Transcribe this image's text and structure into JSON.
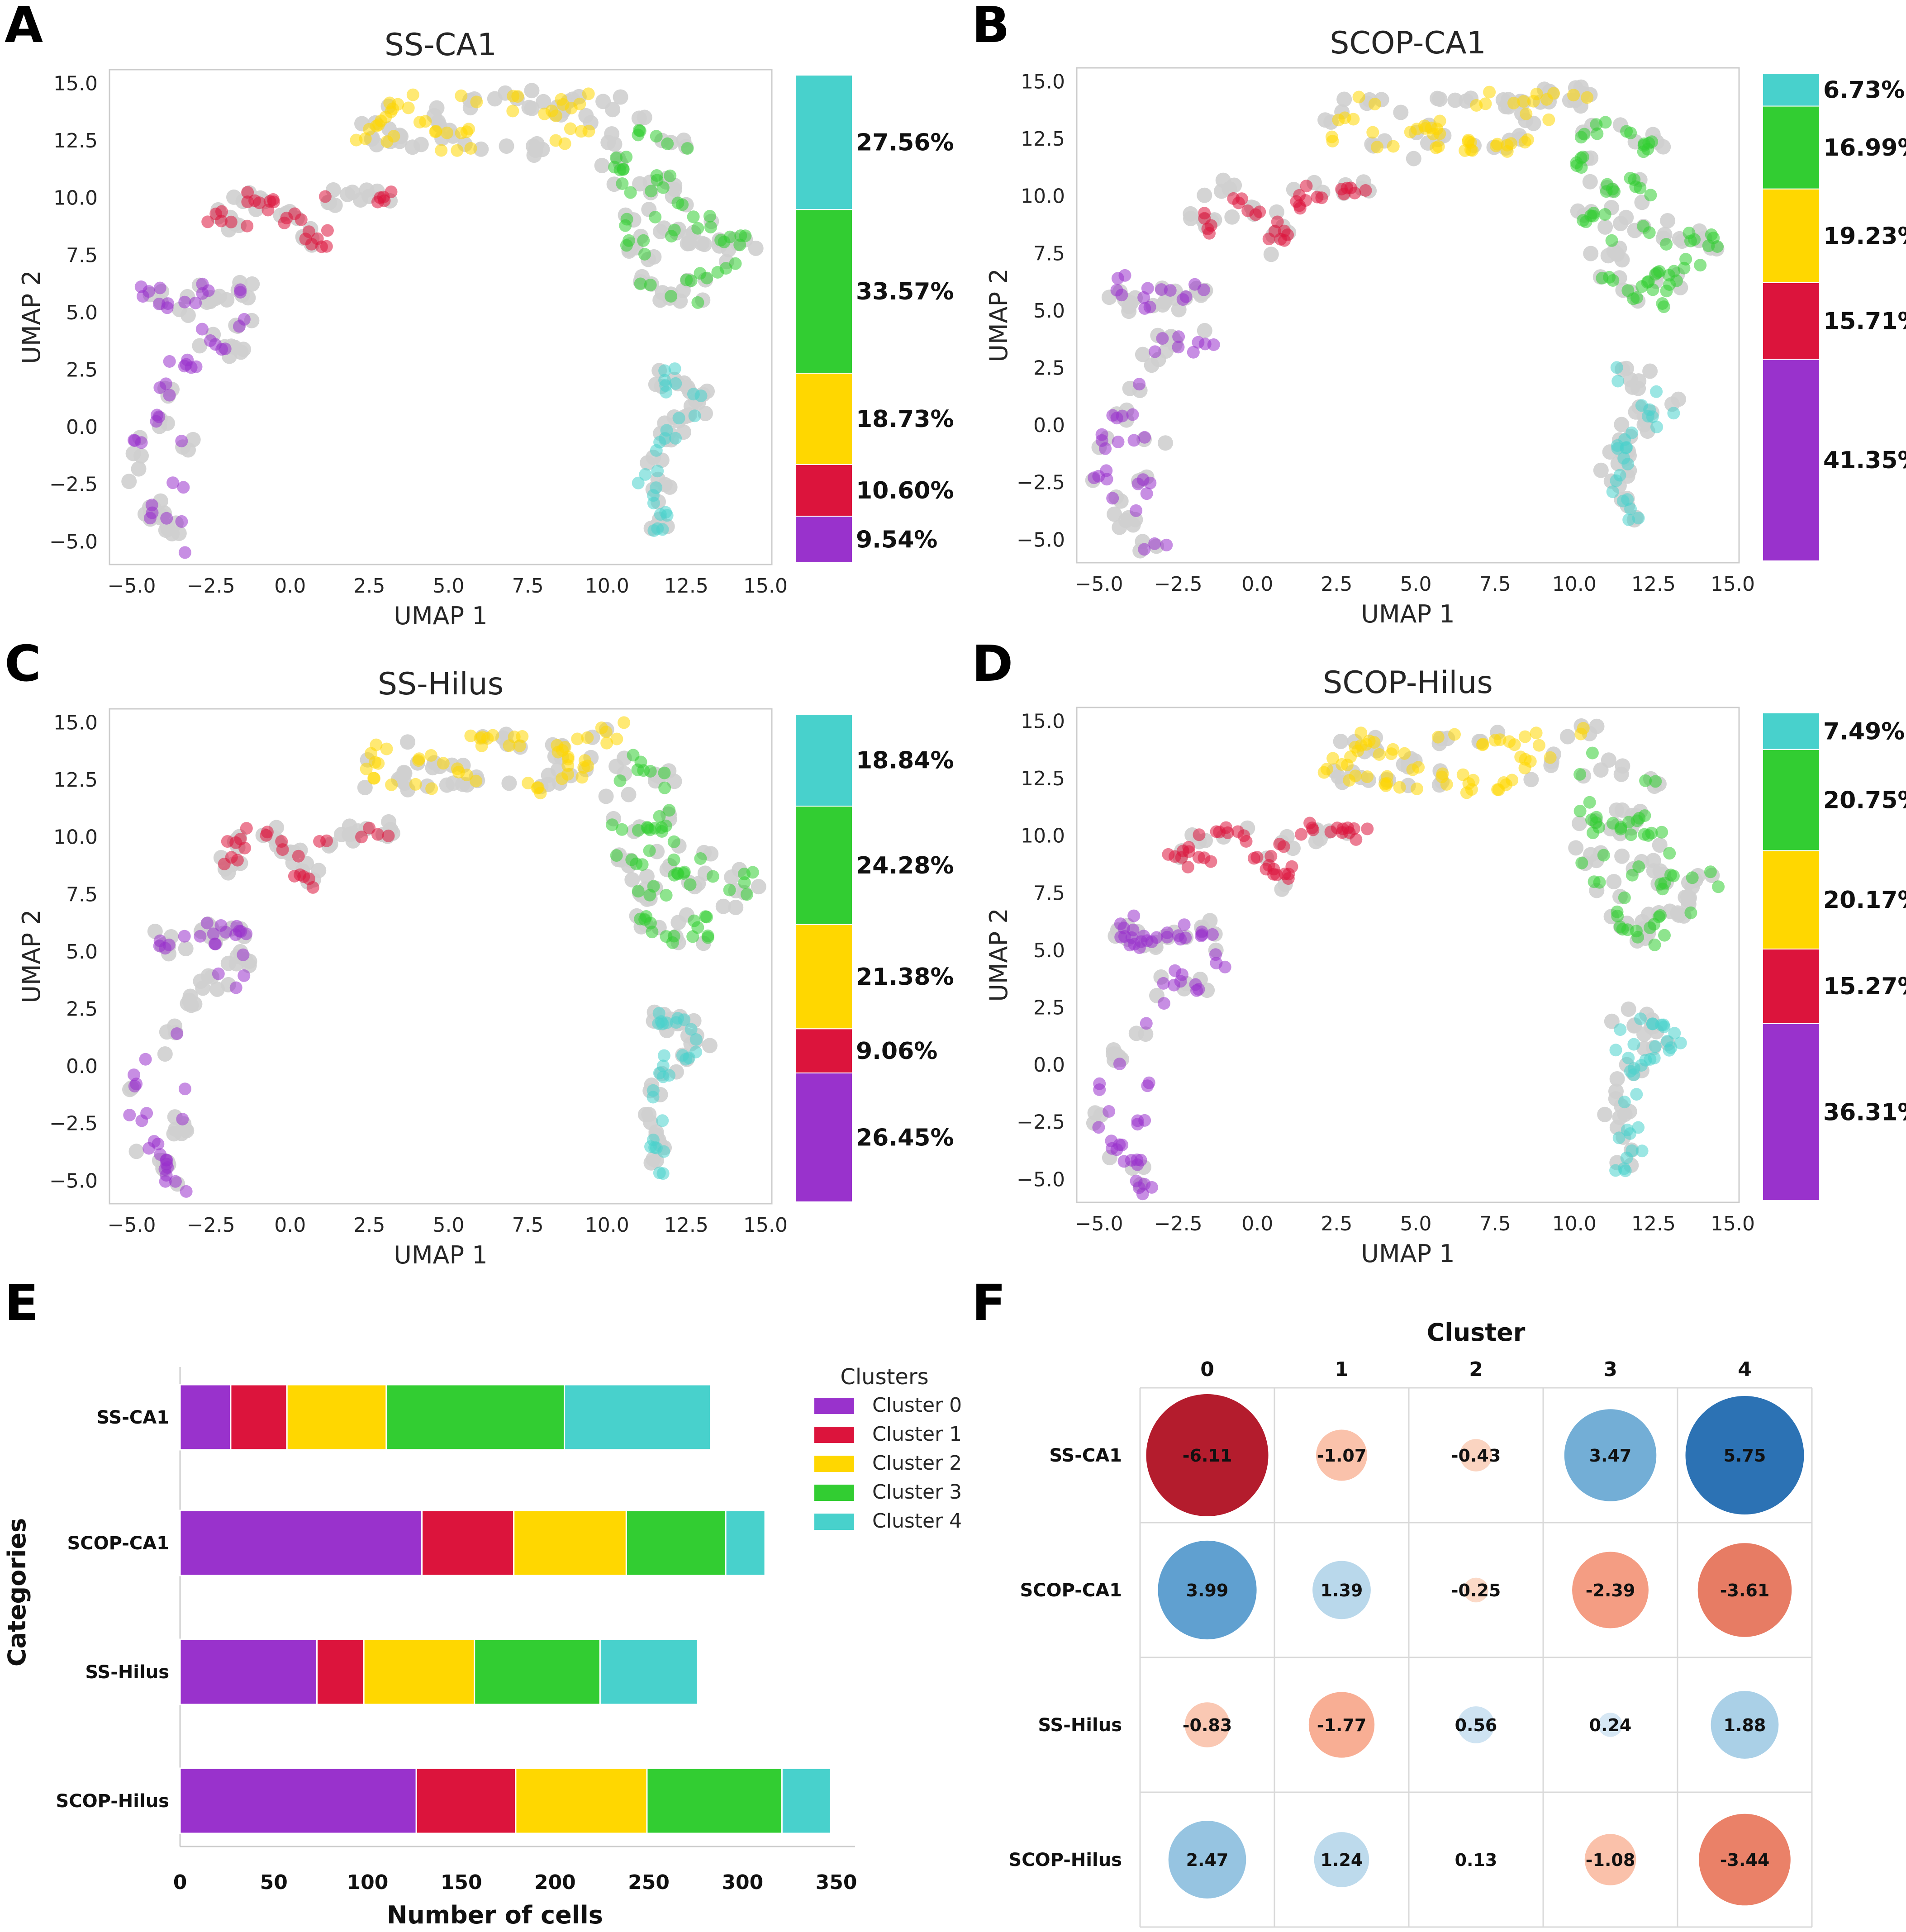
{
  "colors": {
    "cluster_0": "#9932CC",
    "cluster_1": "#DC143C",
    "cluster_2": "#FFD700",
    "cluster_3": "#32CD32",
    "cluster_4": "#48D1CC",
    "background_points": "#cfcfcf"
  },
  "panel_letters": [
    "A",
    "B",
    "C",
    "D",
    "E",
    "F"
  ],
  "chart_data": [
    {
      "panel": "A",
      "type": "scatter",
      "title": "SS-CA1",
      "xlabel": "UMAP 1",
      "ylabel": "UMAP 2",
      "xlim": [
        -5.7,
        15.2
      ],
      "ylim": [
        -6.0,
        15.6
      ],
      "xticks": [
        "−5.0",
        "−2.5",
        "0.0",
        "2.5",
        "5.0",
        "7.5",
        "10.0",
        "12.5",
        "15.0"
      ],
      "yticks": [
        "−5.0",
        "−2.5",
        "0.0",
        "2.5",
        "5.0",
        "7.5",
        "10.0",
        "12.5",
        "15.0"
      ],
      "highlighted_fraction": 0.45,
      "composition": {
        "labels": [
          "Cluster 0",
          "Cluster 1",
          "Cluster 2",
          "Cluster 3",
          "Cluster 4"
        ],
        "values": [
          9.54,
          10.6,
          18.73,
          33.57,
          27.56
        ],
        "value_labels": [
          "9.54%",
          "10.60%",
          "18.73%",
          "33.57%",
          "27.56%"
        ]
      }
    },
    {
      "panel": "B",
      "type": "scatter",
      "title": "SCOP-CA1",
      "xlabel": "UMAP 1",
      "ylabel": "UMAP 2",
      "xlim": [
        -5.7,
        15.2
      ],
      "ylim": [
        -6.0,
        15.6
      ],
      "xticks": [
        "−5.0",
        "−2.5",
        "0.0",
        "2.5",
        "5.0",
        "7.5",
        "10.0",
        "12.5",
        "15.0"
      ],
      "yticks": [
        "−5.0",
        "−2.5",
        "0.0",
        "2.5",
        "5.0",
        "7.5",
        "10.0",
        "12.5",
        "15.0"
      ],
      "highlighted_fraction": 0.52,
      "composition": {
        "labels": [
          "Cluster 0",
          "Cluster 1",
          "Cluster 2",
          "Cluster 3",
          "Cluster 4"
        ],
        "values": [
          41.35,
          15.71,
          19.23,
          16.99,
          6.73
        ],
        "value_labels": [
          "41.35%",
          "15.71%",
          "19.23%",
          "16.99%",
          "6.73%"
        ]
      }
    },
    {
      "panel": "C",
      "type": "scatter",
      "title": "SS-Hilus",
      "xlabel": "UMAP 1",
      "ylabel": "UMAP 2",
      "xlim": [
        -5.7,
        15.2
      ],
      "ylim": [
        -6.0,
        15.6
      ],
      "xticks": [
        "−5.0",
        "−2.5",
        "0.0",
        "2.5",
        "5.0",
        "7.5",
        "10.0",
        "12.5",
        "15.0"
      ],
      "yticks": [
        "−5.0",
        "−2.5",
        "0.0",
        "2.5",
        "5.0",
        "7.5",
        "10.0",
        "12.5",
        "15.0"
      ],
      "highlighted_fraction": 0.44,
      "composition": {
        "labels": [
          "Cluster 0",
          "Cluster 1",
          "Cluster 2",
          "Cluster 3",
          "Cluster 4"
        ],
        "values": [
          26.45,
          9.06,
          21.38,
          24.28,
          18.84
        ],
        "value_labels": [
          "26.45%",
          "9.06%",
          "21.38%",
          "24.28%",
          "18.84%"
        ]
      }
    },
    {
      "panel": "D",
      "type": "scatter",
      "title": "SCOP-Hilus",
      "xlabel": "UMAP 1",
      "ylabel": "UMAP 2",
      "xlim": [
        -5.7,
        15.2
      ],
      "ylim": [
        -6.0,
        15.6
      ],
      "xticks": [
        "−5.0",
        "−2.5",
        "0.0",
        "2.5",
        "5.0",
        "7.5",
        "10.0",
        "12.5",
        "15.0"
      ],
      "yticks": [
        "−5.0",
        "−2.5",
        "0.0",
        "2.5",
        "5.0",
        "7.5",
        "10.0",
        "12.5",
        "15.0"
      ],
      "highlighted_fraction": 0.56,
      "composition": {
        "labels": [
          "Cluster 0",
          "Cluster 1",
          "Cluster 2",
          "Cluster 3",
          "Cluster 4"
        ],
        "values": [
          36.31,
          15.27,
          20.17,
          20.75,
          7.49
        ],
        "value_labels": [
          "36.31%",
          "15.27%",
          "20.17%",
          "20.75%",
          "7.49%"
        ]
      }
    },
    {
      "panel": "E",
      "type": "bar",
      "orientation": "horizontal",
      "stacked": true,
      "xlabel": "Number of cells",
      "ylabel": "Categories",
      "xlim": [
        0,
        360
      ],
      "xticks": [
        0,
        50,
        100,
        150,
        200,
        250,
        300,
        350
      ],
      "categories": [
        "SS-CA1",
        "SCOP-CA1",
        "SS-Hilus",
        "SCOP-Hilus"
      ],
      "series": [
        {
          "name": "Cluster 0",
          "values": [
            27,
            129,
            73,
            126
          ]
        },
        {
          "name": "Cluster 1",
          "values": [
            30,
            49,
            25,
            53
          ]
        },
        {
          "name": "Cluster 2",
          "values": [
            53,
            60,
            59,
            70
          ]
        },
        {
          "name": "Cluster 3",
          "values": [
            95,
            53,
            67,
            72
          ]
        },
        {
          "name": "Cluster 4",
          "values": [
            78,
            21,
            52,
            26
          ]
        }
      ],
      "legend_title": "Clusters",
      "legend_position": "top-right"
    },
    {
      "panel": "F",
      "type": "heatmap",
      "style": "bubble",
      "title": "Cluster",
      "columns": [
        "0",
        "1",
        "2",
        "3",
        "4"
      ],
      "rows": [
        "SS-CA1",
        "SCOP-CA1",
        "SS-Hilus",
        "SCOP-Hilus"
      ],
      "values": [
        [
          -6.11,
          -1.07,
          -0.43,
          3.47,
          5.75
        ],
        [
          3.99,
          1.39,
          -0.25,
          -2.39,
          -3.61
        ],
        [
          -0.83,
          -1.77,
          0.56,
          0.24,
          1.88
        ],
        [
          2.47,
          1.24,
          0.13,
          -1.08,
          -3.44
        ]
      ],
      "value_labels": [
        [
          "-6.11",
          "-1.07",
          "-0.43",
          "3.47",
          "5.75"
        ],
        [
          "3.99",
          "1.39",
          "-0.25",
          "-2.39",
          "-3.61"
        ],
        [
          "-0.83",
          "-1.77",
          "0.56",
          "0.24",
          "1.88"
        ],
        [
          "2.47",
          "1.24",
          "0.13",
          "-1.08",
          "-3.44"
        ]
      ]
    }
  ]
}
